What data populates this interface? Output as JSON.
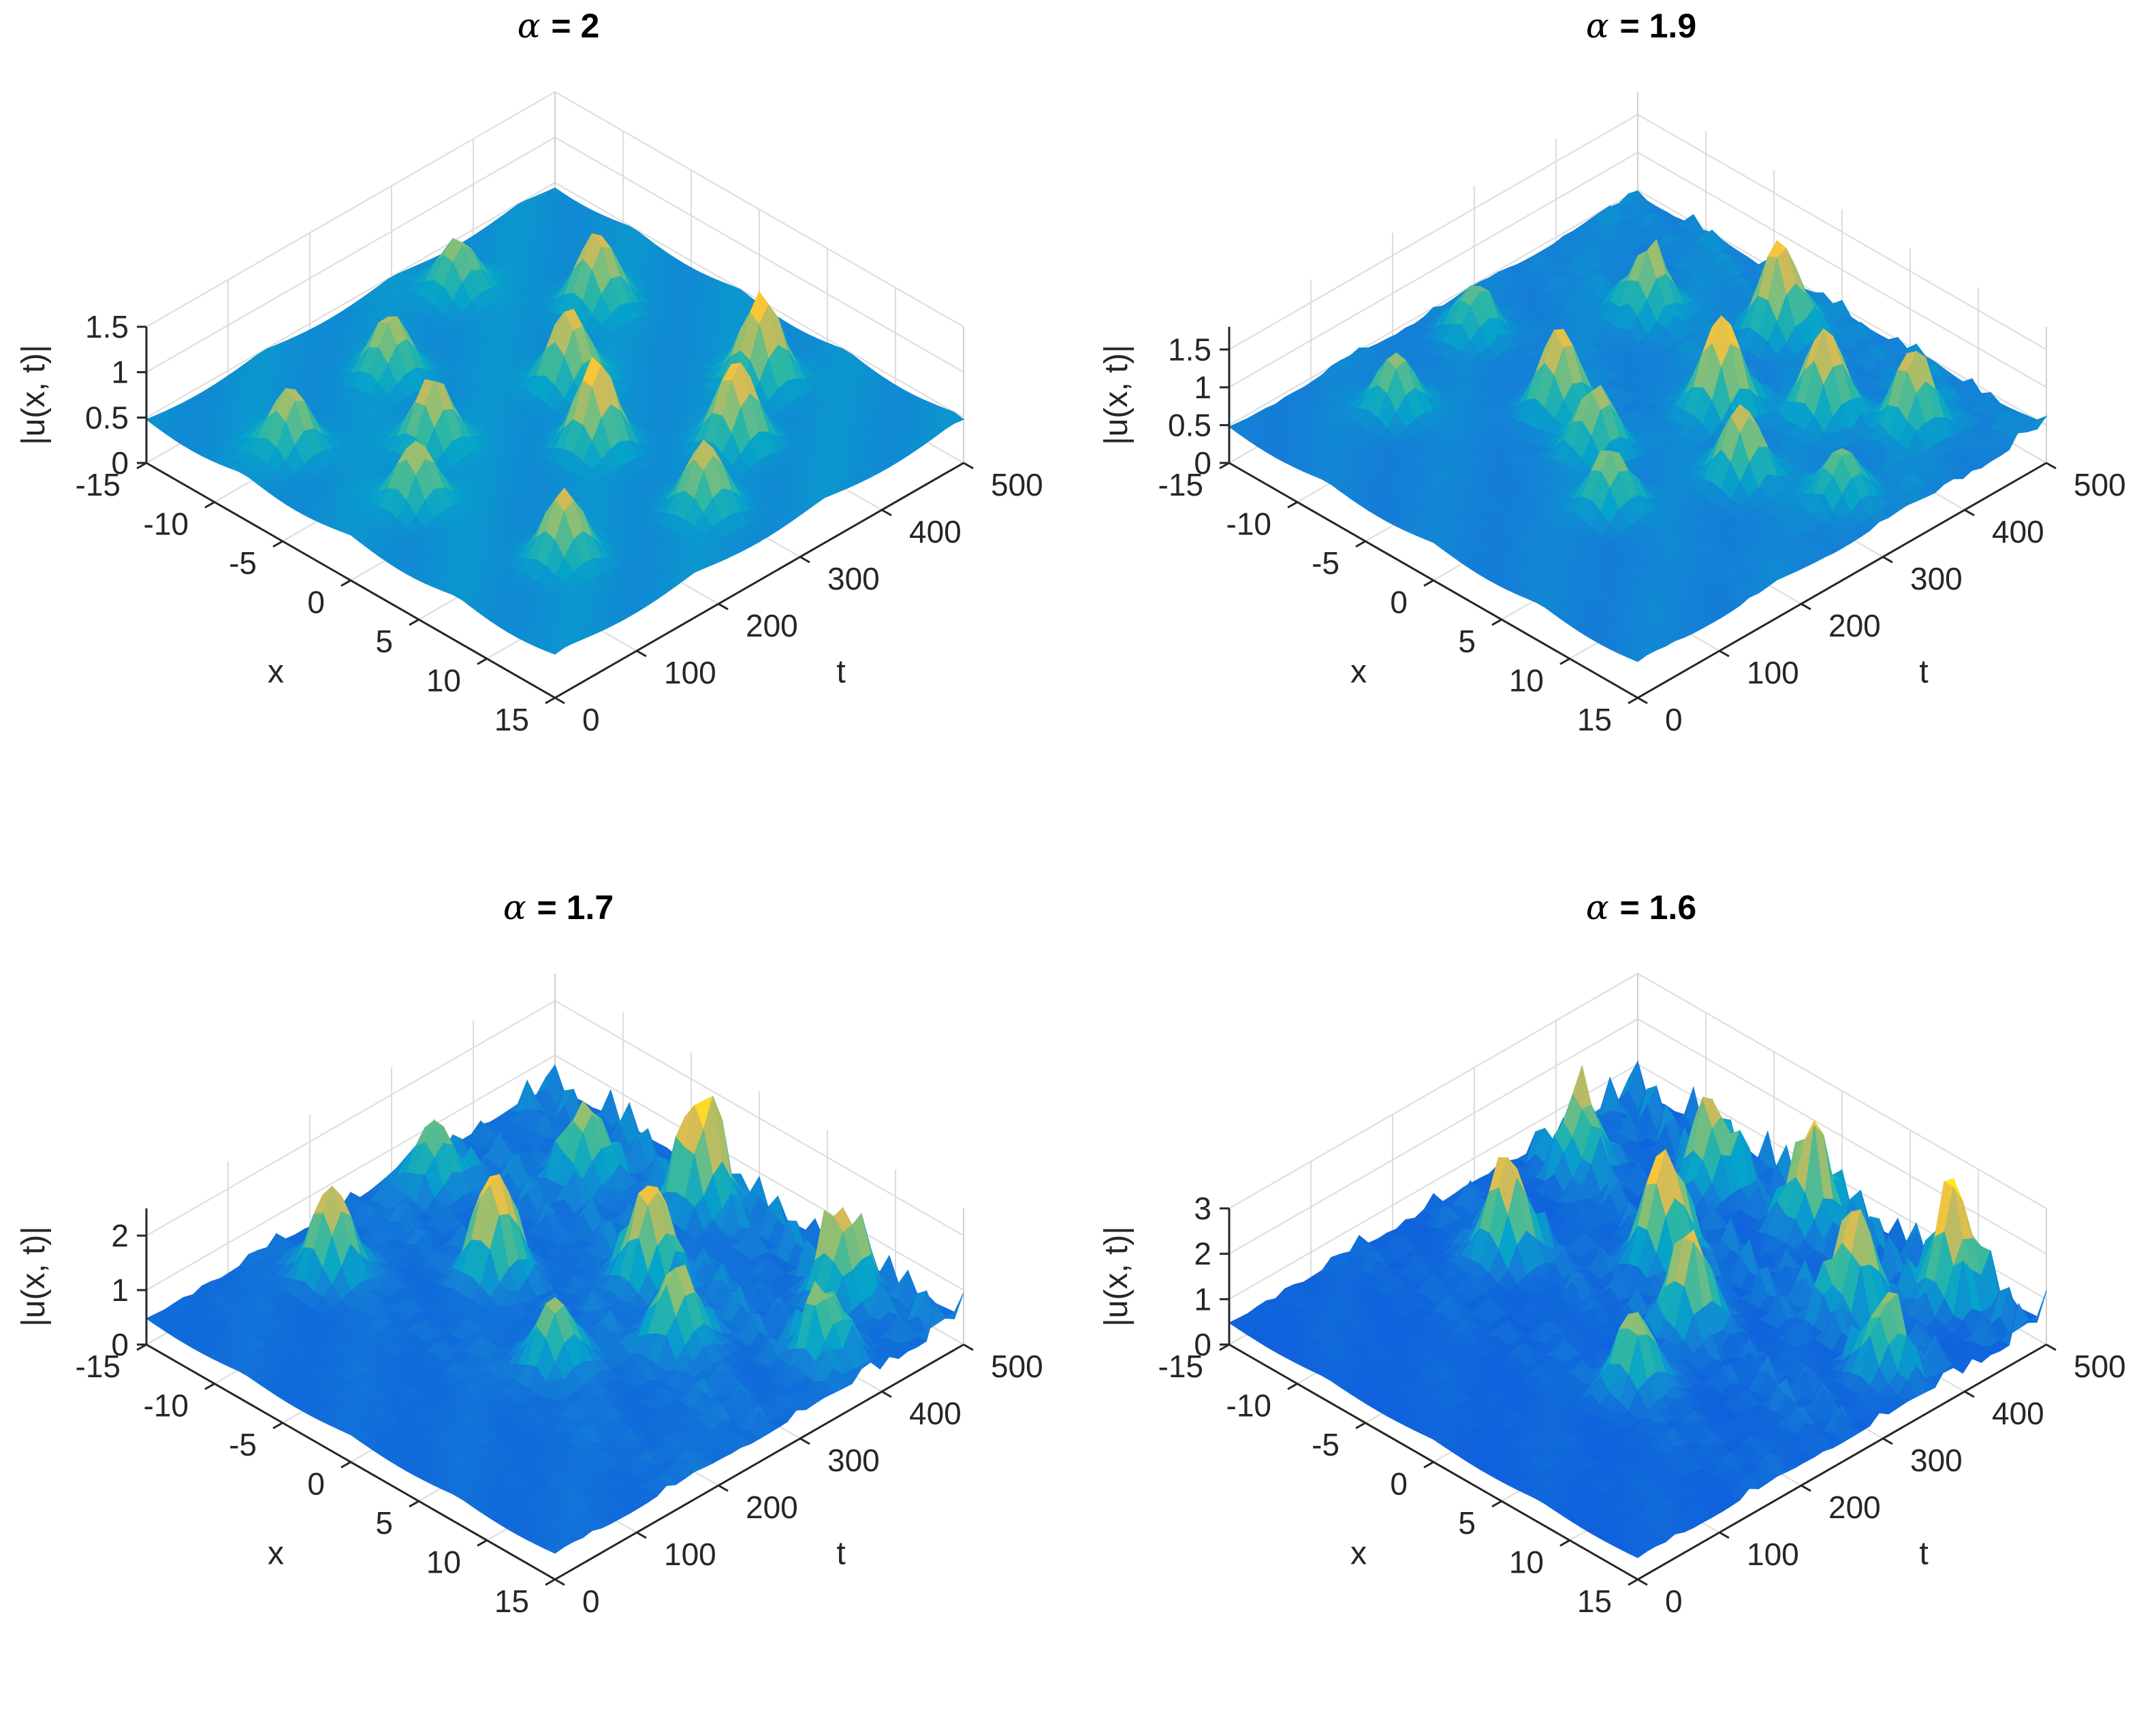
{
  "figure": {
    "colormap": "parula",
    "colormap_stops": [
      "#352a87",
      "#0f5cdd",
      "#1481d6",
      "#06a4ca",
      "#2eb7a4",
      "#87bf77",
      "#d1bb59",
      "#fec832",
      "#f9fb0e"
    ]
  },
  "chart_data": [
    {
      "type": "surface",
      "title_symbol": "α",
      "title_value": "= 2",
      "xlabel": "x",
      "ylabel": "t",
      "zlabel": "|u(x, t)|",
      "x_range": [
        -15,
        15
      ],
      "t_range": [
        0,
        500
      ],
      "zlim": [
        0,
        1.5
      ],
      "x_ticks": [
        "-15",
        "-10",
        "-5",
        "0",
        "5",
        "10",
        "15"
      ],
      "t_ticks": [
        "0",
        "100",
        "200",
        "300",
        "400",
        "500"
      ],
      "z_ticks": [
        "0",
        "0.5",
        "1",
        "1.5"
      ],
      "background_level": 0.5,
      "peak_amplitude": 1.5,
      "peaks": [
        [
          -8,
          60,
          1.2
        ],
        [
          -3,
          150,
          1.3
        ],
        [
          3,
          250,
          1.45
        ],
        [
          8,
          340,
          1.4
        ],
        [
          -9,
          200,
          1.15
        ],
        [
          -2,
          300,
          1.35
        ],
        [
          5,
          420,
          1.5
        ],
        [
          9,
          110,
          1.25
        ],
        [
          -6,
          400,
          1.3
        ],
        [
          0,
          80,
          1.2
        ],
        [
          11,
          250,
          1.2
        ],
        [
          -12,
          330,
          1.1
        ]
      ]
    },
    {
      "type": "surface",
      "title_symbol": "α",
      "title_value": "= 1.9",
      "xlabel": "x",
      "ylabel": "t",
      "zlabel": "|u(x, t)|",
      "x_range": [
        -15,
        15
      ],
      "t_range": [
        0,
        500
      ],
      "zlim": [
        0,
        1.8
      ],
      "x_ticks": [
        "-15",
        "-10",
        "-5",
        "0",
        "5",
        "10",
        "15"
      ],
      "t_ticks": [
        "0",
        "100",
        "200",
        "300",
        "400",
        "500"
      ],
      "z_ticks": [
        "0",
        "0.5",
        "1",
        "1.5"
      ],
      "background_level": 0.5,
      "peak_amplitude": 1.8,
      "peaks": [
        [
          -10,
          120,
          1.3
        ],
        [
          -4,
          220,
          1.6
        ],
        [
          2,
          320,
          1.8
        ],
        [
          7,
          260,
          1.5
        ],
        [
          -7,
          380,
          1.4
        ],
        [
          4,
          150,
          1.3
        ],
        [
          10,
          420,
          1.5
        ],
        [
          -1,
          440,
          1.7
        ],
        [
          12,
          300,
          1.2
        ],
        [
          -12,
          250,
          1.1
        ],
        [
          0,
          200,
          1.4
        ],
        [
          6,
          380,
          1.6
        ]
      ]
    },
    {
      "type": "surface",
      "title_symbol": "α",
      "title_value": "= 1.7",
      "xlabel": "x",
      "ylabel": "t",
      "zlabel": "|u(x, t)|",
      "x_range": [
        -15,
        15
      ],
      "t_range": [
        0,
        500
      ],
      "zlim": [
        0,
        2.5
      ],
      "x_ticks": [
        "-15",
        "-10",
        "-5",
        "0",
        "5",
        "10",
        "15"
      ],
      "t_ticks": [
        "0",
        "100",
        "200",
        "300",
        "400",
        "500"
      ],
      "z_ticks": [
        "0",
        "1",
        "2"
      ],
      "background_level": 0.5,
      "peak_amplitude": 2.5,
      "peaks": [
        [
          -11,
          160,
          2.2
        ],
        [
          -5,
          260,
          2.4
        ],
        [
          1,
          350,
          2.3
        ],
        [
          6,
          300,
          2.0
        ],
        [
          -8,
          420,
          1.9
        ],
        [
          3,
          200,
          1.8
        ],
        [
          9,
          450,
          2.1
        ],
        [
          -2,
          460,
          2.5
        ],
        [
          12,
          380,
          1.6
        ],
        [
          -13,
          320,
          1.7
        ]
      ]
    },
    {
      "type": "surface",
      "title_symbol": "α",
      "title_value": "= 1.6",
      "xlabel": "x",
      "ylabel": "t",
      "zlabel": "|u(x, t)|",
      "x_range": [
        -15,
        15
      ],
      "t_range": [
        0,
        500
      ],
      "zlim": [
        0,
        3
      ],
      "x_ticks": [
        "-15",
        "-10",
        "-5",
        "0",
        "5",
        "10",
        "15"
      ],
      "t_ticks": [
        "0",
        "100",
        "200",
        "300",
        "400",
        "500"
      ],
      "z_ticks": [
        "0",
        "1",
        "2",
        "3"
      ],
      "background_level": 0.5,
      "peak_amplitude": 3,
      "peaks": [
        [
          -9,
          240,
          2.8
        ],
        [
          -3,
          330,
          3.0
        ],
        [
          2,
          280,
          2.6
        ],
        [
          7,
          400,
          2.7
        ],
        [
          -6,
          440,
          2.4
        ],
        [
          4,
          180,
          2.2
        ],
        [
          10,
          470,
          2.9
        ],
        [
          0,
          460,
          2.5
        ],
        [
          12,
          350,
          2.0
        ],
        [
          -12,
          380,
          2.1
        ]
      ]
    }
  ]
}
